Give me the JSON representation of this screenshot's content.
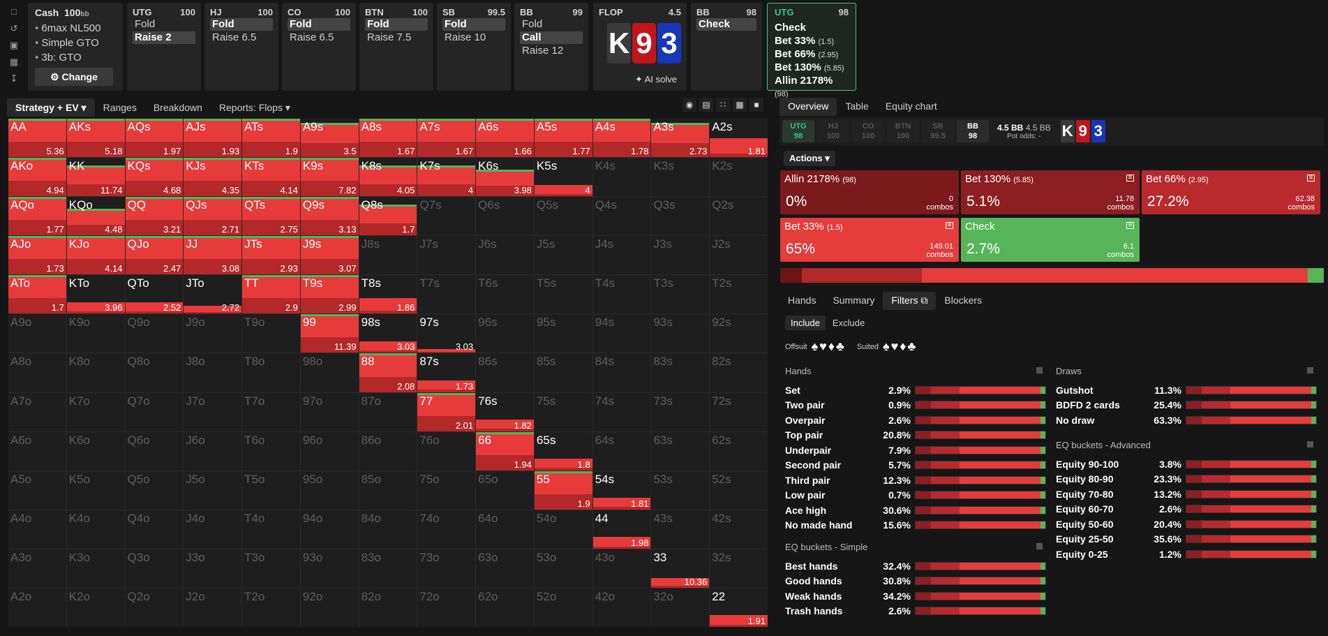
{
  "top": {
    "icons": [
      "bookmark-icon",
      "history-icon",
      "save-icon",
      "gamepad-icon",
      "align-icon"
    ],
    "cash": {
      "title": "Cash",
      "stack": "100",
      "unit": "bb",
      "items": [
        "6max NL500",
        "Simple GTO",
        "3b: GTO"
      ],
      "change": "Change"
    },
    "positions": [
      {
        "name": "UTG",
        "stack": "100",
        "actions": [
          {
            "t": "Fold",
            "sel": false
          },
          {
            "t": "Raise 2",
            "sel": true
          }
        ]
      },
      {
        "name": "HJ",
        "stack": "100",
        "actions": [
          {
            "t": "Fold",
            "sel": true
          },
          {
            "t": "Raise 6.5",
            "sel": false
          }
        ]
      },
      {
        "name": "CO",
        "stack": "100",
        "actions": [
          {
            "t": "Fold",
            "sel": true
          },
          {
            "t": "Raise 6.5",
            "sel": false
          }
        ]
      },
      {
        "name": "BTN",
        "stack": "100",
        "actions": [
          {
            "t": "Fold",
            "sel": true
          },
          {
            "t": "Raise 7.5",
            "sel": false
          }
        ]
      },
      {
        "name": "SB",
        "stack": "99.5",
        "actions": [
          {
            "t": "Fold",
            "sel": true
          },
          {
            "t": "Raise 10",
            "sel": false
          }
        ]
      },
      {
        "name": "BB",
        "stack": "99",
        "actions": [
          {
            "t": "Fold",
            "sel": false
          },
          {
            "t": "Call",
            "sel": true
          },
          {
            "t": "Raise 12",
            "sel": false
          }
        ]
      }
    ],
    "flop": {
      "name": "FLOP",
      "pot": "4.5",
      "cards": [
        {
          "r": "K",
          "c": "#3a3a3a"
        },
        {
          "r": "9",
          "c": "#c0161c"
        },
        {
          "r": "3",
          "c": "#1836b8"
        }
      ],
      "ai": "AI solve"
    },
    "bb2": {
      "name": "BB",
      "stack": "98",
      "action": "Check"
    },
    "utg2": {
      "name": "UTG",
      "stack": "98",
      "options": [
        {
          "t": "Check",
          "s": ""
        },
        {
          "t": "Bet 33%",
          "s": "(1.5)"
        },
        {
          "t": "Bet 66%",
          "s": "(2.95)"
        },
        {
          "t": "Bet 130%",
          "s": "(5.85)"
        },
        {
          "t": "Allin 2178%",
          "s": "(98)"
        }
      ]
    }
  },
  "lefttabs": [
    "Strategy + EV",
    "Ranges",
    "Breakdown",
    "Reports: Flops"
  ],
  "grid": {
    "ranks": [
      "A",
      "K",
      "Q",
      "J",
      "T",
      "9",
      "8",
      "7",
      "6",
      "5",
      "4",
      "3",
      "2"
    ],
    "cells": {
      "AA": [
        5.36,
        1
      ],
      "AKs": [
        5.18,
        1
      ],
      "AQs": [
        1.97,
        1
      ],
      "AJs": [
        1.93,
        1
      ],
      "ATs": [
        1.9,
        1
      ],
      "A9s": [
        3.5,
        0.9
      ],
      "A8s": [
        1.67,
        1
      ],
      "A7s": [
        1.67,
        1
      ],
      "A6s": [
        1.66,
        1
      ],
      "A5s": [
        1.77,
        1
      ],
      "A4s": [
        1.78,
        1
      ],
      "A3s": [
        2.73,
        0.9
      ],
      "A2s": [
        1.81,
        0.5
      ],
      "AKo": [
        4.94,
        1
      ],
      "KK": [
        11.74,
        0.8
      ],
      "KQs": [
        4.68,
        1
      ],
      "KJs": [
        4.35,
        1
      ],
      "KTs": [
        4.14,
        1
      ],
      "K9s": [
        7.82,
        1
      ],
      "K8s": [
        4.05,
        0.8
      ],
      "K7s": [
        4,
        0.8
      ],
      "K6s": [
        3.98,
        0.7
      ],
      "K5s": [
        4,
        0.3
      ],
      "AQo": [
        1.77,
        1
      ],
      "KQo": [
        4.48,
        0.7
      ],
      "QQ": [
        3.21,
        1
      ],
      "QJs": [
        2.71,
        1
      ],
      "QTs": [
        2.75,
        1
      ],
      "Q9s": [
        3.13,
        1
      ],
      "Q8s": [
        1.7,
        0.8
      ],
      "AJo": [
        1.73,
        1
      ],
      "KJo": [
        4.14,
        1
      ],
      "QJo": [
        2.47,
        1
      ],
      "JJ": [
        3.08,
        1
      ],
      "JTs": [
        2.93,
        1
      ],
      "J9s": [
        3.07,
        1
      ],
      "ATo": [
        1.7,
        1
      ],
      "KTo": [
        3.96,
        0.3
      ],
      "QTo": [
        2.52,
        0.3
      ],
      "JTo": [
        2.72,
        0.2
      ],
      "TT": [
        2.9,
        1
      ],
      "T9s": [
        2.99,
        1
      ],
      "T8s": [
        1.86,
        0.4
      ],
      "99": [
        11.39,
        1
      ],
      "98s": [
        3.03,
        0.3
      ],
      "97s": [
        3.03,
        0.1
      ],
      "88": [
        2.08,
        1
      ],
      "87s": [
        1.73,
        0.3
      ],
      "77": [
        2.01,
        1
      ],
      "76s": [
        1.82,
        0.3
      ],
      "66": [
        1.94,
        1
      ],
      "65s": [
        1.8,
        0.3
      ],
      "55": [
        1.9,
        1
      ],
      "54s": [
        1.81,
        0.3
      ],
      "44": [
        1.98,
        0.3
      ],
      "33": [
        10.36,
        0.25
      ],
      "22": [
        1.91,
        0.3
      ]
    }
  },
  "right": {
    "tabs": [
      "Overview",
      "Table",
      "Equity chart"
    ],
    "seats": [
      {
        "n": "UTG",
        "s": "98"
      },
      {
        "n": "HJ",
        "s": "100"
      },
      {
        "n": "CO",
        "s": "100"
      },
      {
        "n": "BTN",
        "s": "100"
      },
      {
        "n": "SB",
        "s": "99.5"
      },
      {
        "n": "BB",
        "s": "98"
      }
    ],
    "pot": {
      "a": "4.5 BB",
      "b": "4.5 BB",
      "odds": "Pot odds:",
      "oddsv": "-"
    },
    "actions_label": "Actions",
    "actionboxes": [
      {
        "n": "Allin 2178%",
        "s": "(98)",
        "p": "0%",
        "c": "0",
        "color": "#7b1a1c"
      },
      {
        "n": "Bet 130%",
        "s": "(5.85)",
        "p": "5.1%",
        "c": "11.78",
        "color": "#8d1e22"
      },
      {
        "n": "Bet 66%",
        "s": "(2.95)",
        "p": "27.2%",
        "c": "62.38",
        "color": "#b82a2d"
      },
      {
        "n": "Bet 33%",
        "s": "(1.5)",
        "p": "65%",
        "c": "149.01",
        "color": "#e53c3c"
      },
      {
        "n": "Check",
        "s": "",
        "p": "2.7%",
        "c": "6.1",
        "color": "#56b559"
      }
    ],
    "combos_label": "combos",
    "subtabs": [
      "Hands",
      "Summary",
      "Filters",
      "Blockers"
    ],
    "include": "Include",
    "exclude": "Exclude",
    "offsuit": "Offsuit",
    "suited": "Suited",
    "hands_title": "Hands",
    "hands": [
      [
        "Set",
        "2.9%"
      ],
      [
        "Two pair",
        "0.9%"
      ],
      [
        "Overpair",
        "2.6%"
      ],
      [
        "Top pair",
        "20.8%"
      ],
      [
        "Underpair",
        "7.9%"
      ],
      [
        "Second pair",
        "5.7%"
      ],
      [
        "Third pair",
        "12.3%"
      ],
      [
        "Low pair",
        "0.7%"
      ],
      [
        "Ace high",
        "30.6%"
      ],
      [
        "No made hand",
        "15.6%"
      ]
    ],
    "eqs_title": "EQ buckets - Simple",
    "eqs": [
      [
        "Best hands",
        "32.4%"
      ],
      [
        "Good hands",
        "30.8%"
      ],
      [
        "Weak hands",
        "34.2%"
      ],
      [
        "Trash hands",
        "2.6%"
      ]
    ],
    "draws_title": "Draws",
    "draws": [
      [
        "Gutshot",
        "11.3%"
      ],
      [
        "BDFD 2 cards",
        "25.4%"
      ],
      [
        "No draw",
        "63.3%"
      ]
    ],
    "eqa_title": "EQ buckets - Advanced",
    "eqa": [
      [
        "Equity 90-100",
        "3.8%"
      ],
      [
        "Equity 80-90",
        "23.3%"
      ],
      [
        "Equity 70-80",
        "13.2%"
      ],
      [
        "Equity 60-70",
        "2.6%"
      ],
      [
        "Equity 50-60",
        "20.4%"
      ],
      [
        "Equity 25-50",
        "35.6%"
      ],
      [
        "Equity 0-25",
        "1.2%"
      ]
    ]
  }
}
